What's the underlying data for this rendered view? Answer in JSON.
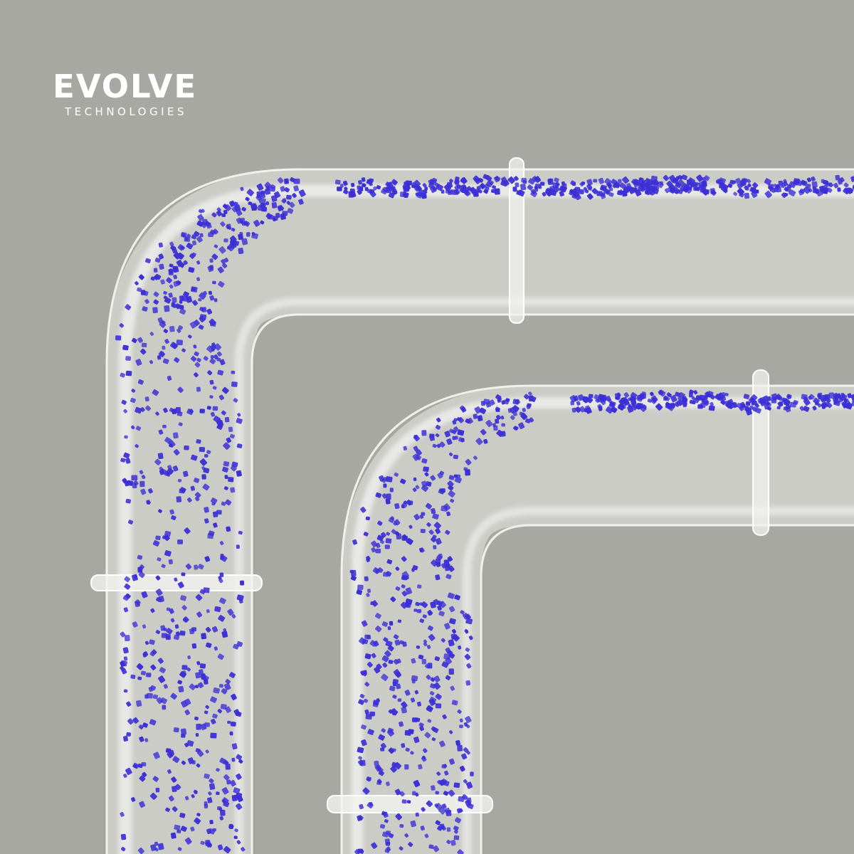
{
  "brand": {
    "name": "EVOLVE",
    "tagline": "TECHNOLOGIES"
  },
  "colors": {
    "background": "#a8a8a3",
    "pipe_body": "#e9e9e6",
    "pipe_highlight": "#ffffff",
    "pellet": "#3b2fd6",
    "logo_text": "#ffffff"
  },
  "scene": {
    "subject": "two transparent pipe elbows carrying blue pellets",
    "pipes": [
      {
        "name": "upper-pipe",
        "couplings": 2
      },
      {
        "name": "lower-pipe",
        "couplings": 2
      }
    ]
  }
}
